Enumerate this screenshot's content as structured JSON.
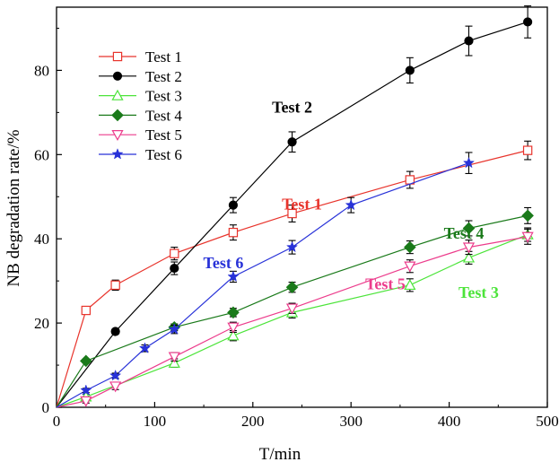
{
  "chart_data": {
    "type": "line",
    "title": "",
    "xlabel": "T/min",
    "ylabel": "NB degradation rate/%",
    "xlim": [
      0,
      500
    ],
    "ylim": [
      0,
      95
    ],
    "xticks": [
      0,
      100,
      200,
      300,
      400,
      500
    ],
    "yticks": [
      0,
      20,
      40,
      60,
      80
    ],
    "grid": false,
    "legend_position": "top-left",
    "series": [
      {
        "name": "Test 1",
        "color": "#e8342c",
        "marker": "square-open",
        "x": [
          0,
          30,
          60,
          120,
          180,
          240,
          360,
          480
        ],
        "y": [
          0,
          23,
          29,
          36.5,
          41.5,
          46,
          54,
          61
        ],
        "err": [
          0,
          0.9,
          1.2,
          1.5,
          1.8,
          2,
          2,
          2.2
        ],
        "annotation": {
          "text": "Test 1",
          "x": 250,
          "y": 47
        }
      },
      {
        "name": "Test 2",
        "color": "#000000",
        "marker": "circle-filled",
        "x": [
          0,
          60,
          120,
          180,
          240,
          360,
          420,
          480
        ],
        "y": [
          0,
          18,
          33,
          48,
          63,
          80,
          87,
          91.5
        ],
        "err": [
          0,
          0.6,
          1.5,
          1.8,
          2.4,
          3,
          3.5,
          3.8
        ],
        "annotation": {
          "text": "Test 2",
          "x": 240,
          "y": 70
        }
      },
      {
        "name": "Test 3",
        "color": "#4ce43a",
        "marker": "triangle-up-open",
        "x": [
          0,
          30,
          120,
          180,
          240,
          360,
          420,
          480
        ],
        "y": [
          0,
          2.5,
          10.5,
          17,
          22.5,
          29,
          35.5,
          41
        ],
        "err": [
          0,
          0.6,
          1,
          1.2,
          1.3,
          1.5,
          1.5,
          1.6
        ],
        "annotation": {
          "text": "Test 3",
          "x": 430,
          "y": 26
        }
      },
      {
        "name": "Test 4",
        "color": "#1a7a1a",
        "marker": "diamond-filled",
        "x": [
          0,
          30,
          120,
          180,
          240,
          360,
          420,
          480
        ],
        "y": [
          0,
          11,
          19,
          22.5,
          28.5,
          38,
          42.5,
          45.5
        ],
        "err": [
          0,
          0.5,
          0.8,
          1,
          1.2,
          1.5,
          1.8,
          1.9
        ],
        "annotation": {
          "text": "Test 4",
          "x": 415,
          "y": 40
        }
      },
      {
        "name": "Test 5",
        "color": "#ec3c8c",
        "marker": "triangle-down-open",
        "x": [
          0,
          30,
          60,
          120,
          180,
          240,
          360,
          420,
          480
        ],
        "y": [
          0,
          1.5,
          5,
          12,
          19,
          23.5,
          33.5,
          38,
          40.5
        ],
        "err": [
          0,
          0.5,
          0.8,
          1,
          1.2,
          1.2,
          1.5,
          1.7,
          1.8
        ],
        "annotation": {
          "text": "Test 5",
          "x": 335,
          "y": 28
        }
      },
      {
        "name": "Test 6",
        "color": "#2832d8",
        "marker": "star-filled",
        "x": [
          0,
          30,
          60,
          90,
          120,
          180,
          240,
          300,
          420
        ],
        "y": [
          0,
          4,
          7.5,
          14,
          18.5,
          31,
          38,
          48,
          58
        ],
        "err": [
          0,
          0.5,
          0.6,
          0.8,
          1,
          1.3,
          1.6,
          1.8,
          2.5
        ],
        "annotation": {
          "text": "Test 6",
          "x": 170,
          "y": 33
        }
      }
    ]
  }
}
